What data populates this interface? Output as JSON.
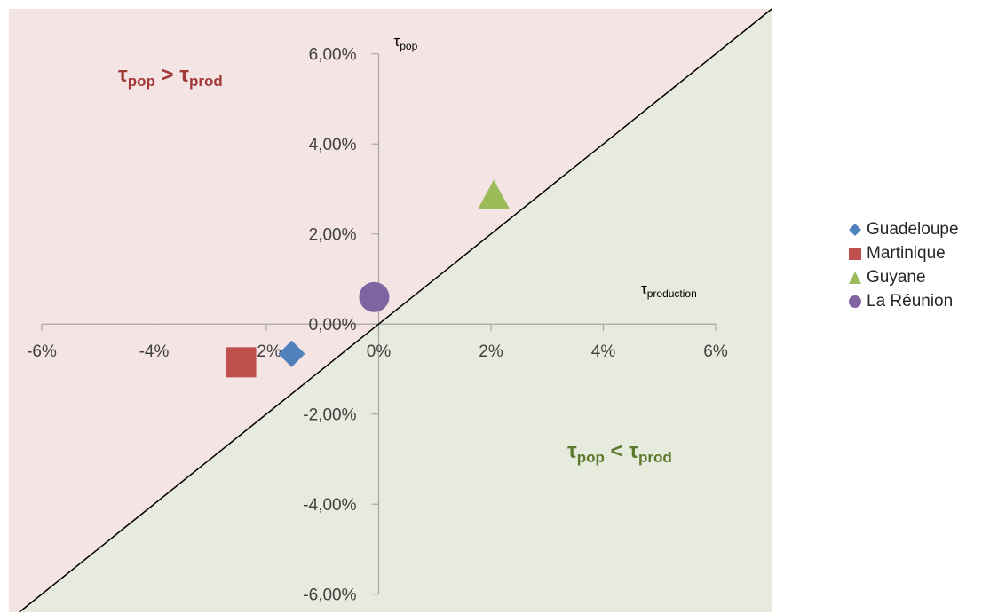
{
  "chart_data": {
    "type": "scatter",
    "x_axis": {
      "label_base": "τ",
      "label_sub": "production",
      "range": [
        -0.06,
        0.06
      ],
      "ticks": [
        -0.06,
        -0.04,
        -0.02,
        0,
        0.02,
        0.04,
        0.06
      ],
      "tick_labels": [
        "-6%",
        "-4%",
        "-2%",
        "0%",
        "2%",
        "4%",
        "6%"
      ]
    },
    "y_axis": {
      "label_base": "τ",
      "label_sub": "pop",
      "range": [
        -0.064,
        0.07
      ],
      "ticks": [
        -0.06,
        -0.04,
        -0.02,
        0,
        0.02,
        0.04,
        0.06
      ],
      "tick_labels": [
        "-6,00%",
        "-4,00%",
        "-2,00%",
        "0,00%",
        "2,00%",
        "4,00%",
        "6,00%"
      ]
    },
    "series": [
      {
        "name": "Guadeloupe",
        "marker": "diamond",
        "color": "#4f81bd",
        "x": -0.0155,
        "y": -0.0066
      },
      {
        "name": "Martinique",
        "marker": "square",
        "color": "#c0504d",
        "x": -0.0245,
        "y": -0.0085
      },
      {
        "name": "Guyane",
        "marker": "triangle",
        "color": "#9bbb59",
        "x": 0.0205,
        "y": 0.0285
      },
      {
        "name": "La Réunion",
        "marker": "circle",
        "color": "#8064a2",
        "x": -0.0008,
        "y": 0.006
      }
    ],
    "reference_line": {
      "equation": "y = x"
    },
    "regions": [
      {
        "label_base": "τ",
        "label_sub1": "pop",
        "op": " > ",
        "label_base2": "τ",
        "label_sub2": "prod",
        "fill": "#f5e4e4",
        "text_color": "#a13a37"
      },
      {
        "label_base": "τ",
        "label_sub1": "pop",
        "op": " < ",
        "label_base2": "τ",
        "label_sub2": "prod",
        "fill": "#e7ebdd",
        "text_color": "#5c7a2e"
      }
    ],
    "legend_position": "right",
    "grid": false
  }
}
